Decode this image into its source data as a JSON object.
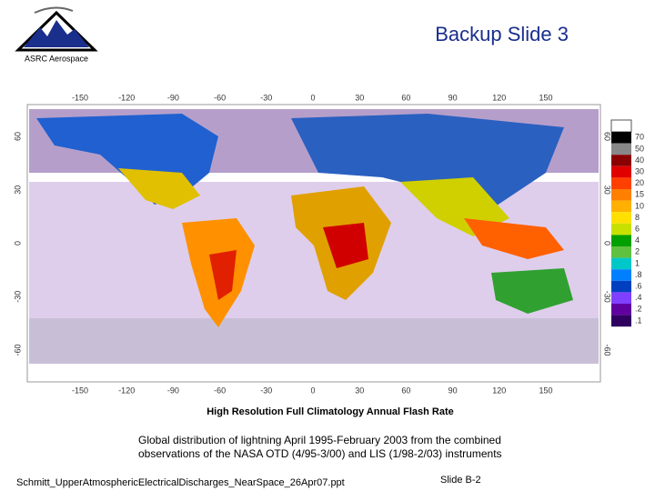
{
  "header": {
    "title": "Backup Slide 3",
    "logo_text": "ASRC Aerospace"
  },
  "figure": {
    "lon_labels": [
      "-150",
      "-120",
      "-90",
      "-60",
      "-30",
      "0",
      "30",
      "60",
      "90",
      "120",
      "150"
    ],
    "lat_labels": [
      "60",
      "30",
      "0",
      "-30",
      "-60"
    ],
    "colorbar_labels": [
      "70",
      "50",
      "40",
      "30",
      "20",
      "15",
      "10",
      "8",
      "6",
      "4",
      "2",
      "1",
      ".8",
      ".6",
      ".4",
      ".2",
      ".1"
    ],
    "title": "High Resolution Full Climatology Annual Flash Rate",
    "caption": [
      "Global distribution of lightning April 1995-February 2003 from the combined",
      "observations of the NASA OTD (4/95-3/00) and LIS (1/98-2/03) instruments"
    ]
  },
  "footer": {
    "file": "Schmitt_UpperAtmosphericElectricalDischarges_NearSpace_26Apr07.ppt",
    "slide": "Slide B-2"
  }
}
